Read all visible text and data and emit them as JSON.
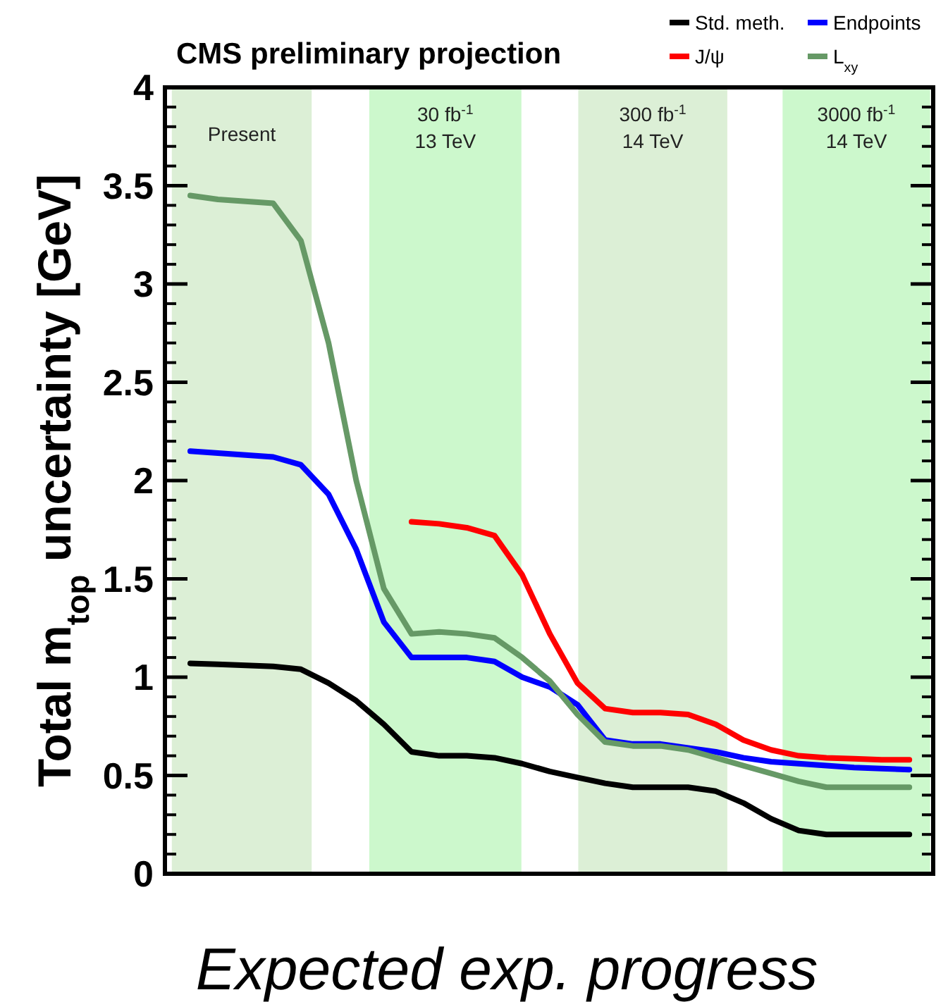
{
  "chart_data": {
    "type": "line",
    "title": "CMS preliminary projection",
    "xlabel": "Expected exp. progress",
    "ylabel": "Total m$_{top}$ uncertainty [GeV]",
    "categories": [
      null,
      null,
      null,
      null,
      null,
      null,
      null,
      null,
      null,
      null,
      null,
      null,
      null,
      null,
      null,
      null,
      null,
      null,
      null,
      null,
      null,
      null,
      null,
      null,
      null,
      null,
      null
    ],
    "ylim": [
      0,
      4
    ],
    "yticks": [
      0,
      0.5,
      1,
      1.5,
      2,
      2.5,
      3,
      3.5,
      4
    ],
    "legend": "top right",
    "line_style": "solid",
    "annotations": [
      "Present",
      "30 fb$^{-1}$\n13 TeV",
      "300 fb$^{-1}$\n14 TeV",
      "3000 fb$^{-1}$\n14 TeV"
    ],
    "series": [
      {
        "name": "Std. meth.",
        "color": "#000000",
        "values": [
          1.07,
          1.065,
          1.06,
          1.055,
          1.04,
          0.97,
          0.88,
          0.76,
          0.62,
          0.6,
          0.6,
          0.59,
          0.56,
          0.52,
          0.49,
          0.46,
          0.44,
          0.44,
          0.44,
          0.42,
          0.36,
          0.28,
          0.22,
          0.2,
          0.2,
          0.2,
          0.2
        ]
      },
      {
        "name": "Endpoints",
        "color": "#0000ff",
        "values": [
          2.15,
          2.14,
          2.13,
          2.12,
          2.08,
          1.93,
          1.65,
          1.28,
          1.1,
          1.1,
          1.1,
          1.08,
          1.0,
          0.95,
          0.86,
          0.68,
          0.66,
          0.66,
          0.64,
          0.62,
          0.59,
          0.57,
          0.56,
          0.55,
          0.54,
          0.535,
          0.53
        ]
      },
      {
        "name": "J/ψ",
        "color": "#ff0000",
        "values": [
          null,
          null,
          null,
          null,
          null,
          null,
          null,
          null,
          1.79,
          1.78,
          1.76,
          1.72,
          1.52,
          1.22,
          0.97,
          0.84,
          0.82,
          0.82,
          0.81,
          0.76,
          0.68,
          0.63,
          0.6,
          0.59,
          0.585,
          0.58,
          0.58
        ]
      },
      {
        "name": "L$_{xy}$",
        "color": "#669966",
        "values": [
          3.45,
          3.43,
          3.42,
          3.41,
          3.22,
          2.7,
          2.0,
          1.45,
          1.22,
          1.23,
          1.22,
          1.2,
          1.1,
          0.98,
          0.81,
          0.67,
          0.65,
          0.65,
          0.63,
          0.59,
          0.55,
          0.51,
          0.47,
          0.44,
          0.44,
          0.44,
          0.44
        ]
      }
    ]
  }
}
